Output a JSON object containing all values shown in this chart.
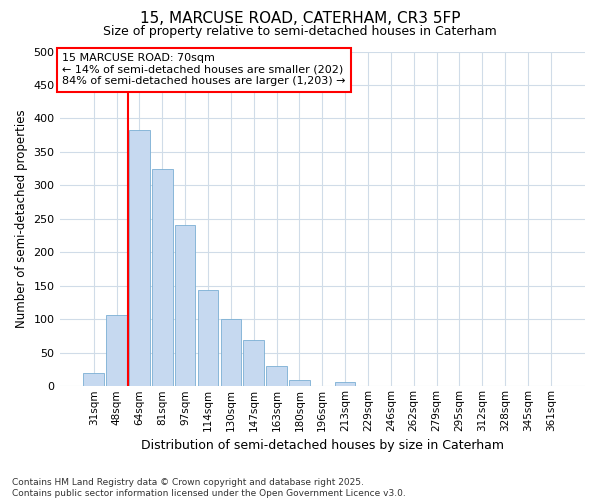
{
  "title1": "15, MARCUSE ROAD, CATERHAM, CR3 5FP",
  "title2": "Size of property relative to semi-detached houses in Caterham",
  "xlabel": "Distribution of semi-detached houses by size in Caterham",
  "ylabel": "Number of semi-detached properties",
  "categories": [
    "31sqm",
    "48sqm",
    "64sqm",
    "81sqm",
    "97sqm",
    "114sqm",
    "130sqm",
    "147sqm",
    "163sqm",
    "180sqm",
    "196sqm",
    "213sqm",
    "229sqm",
    "246sqm",
    "262sqm",
    "279sqm",
    "295sqm",
    "312sqm",
    "328sqm",
    "345sqm",
    "361sqm"
  ],
  "values": [
    20,
    107,
    383,
    325,
    241,
    144,
    101,
    69,
    30,
    10,
    0,
    7,
    0,
    0,
    0,
    0,
    0,
    0,
    0,
    0,
    0
  ],
  "bar_color": "#c6d9f0",
  "bar_edge_color": "#7bafd4",
  "vline_x": 1.5,
  "vline_color": "red",
  "annotation_title": "15 MARCUSE ROAD: 70sqm",
  "annotation_line1": "← 14% of semi-detached houses are smaller (202)",
  "annotation_line2": "84% of semi-detached houses are larger (1,203) →",
  "ylim": [
    0,
    500
  ],
  "yticks": [
    0,
    50,
    100,
    150,
    200,
    250,
    300,
    350,
    400,
    450,
    500
  ],
  "footer1": "Contains HM Land Registry data © Crown copyright and database right 2025.",
  "footer2": "Contains public sector information licensed under the Open Government Licence v3.0.",
  "bg_color": "#ffffff",
  "grid_color": "#d0dce8"
}
